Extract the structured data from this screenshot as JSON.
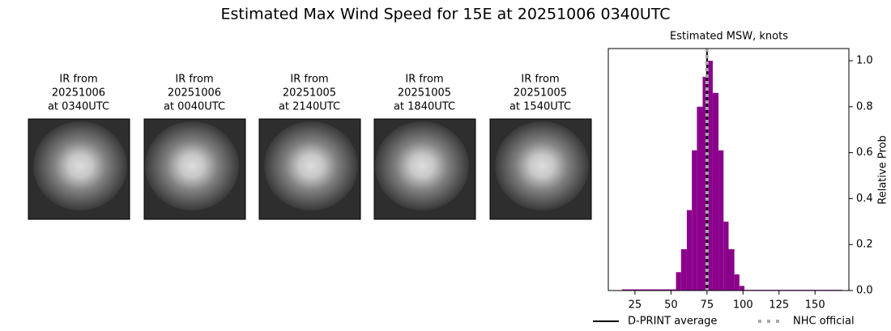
{
  "title": "Estimated Max Wind Speed for 15E at 20251006 0340UTC",
  "panels": [
    {
      "lines": [
        "IR from",
        "20251006",
        "at 0340UTC"
      ]
    },
    {
      "lines": [
        "IR from",
        "20251006",
        "at 0040UTC"
      ]
    },
    {
      "lines": [
        "IR from",
        "20251005",
        "at 2140UTC"
      ]
    },
    {
      "lines": [
        "IR from",
        "20251005",
        "at 1840UTC"
      ]
    },
    {
      "lines": [
        "IR from",
        "20251005",
        "at 1540UTC"
      ]
    }
  ],
  "chart_data": {
    "type": "histogram",
    "title": "Estimated MSW, knots",
    "ylabel": "Relative Prob",
    "bins": [
      16,
      53.5,
      57,
      61,
      64.5,
      68,
      72,
      75.5,
      79,
      83,
      86.5,
      90,
      94,
      97.5,
      101,
      169
    ],
    "values": [
      0.005,
      0.08,
      0.18,
      0.35,
      0.61,
      0.8,
      0.93,
      1.0,
      0.86,
      0.61,
      0.3,
      0.18,
      0.07,
      0.02,
      0.003
    ],
    "color": "#8b008b",
    "xlim": [
      6.5,
      173.5
    ],
    "ylim": [
      0,
      1.053
    ],
    "xticks": [
      25,
      50,
      75,
      100,
      125,
      150
    ],
    "yticks": [
      {
        "value": 0,
        "label": "0.0"
      },
      {
        "value": 0.2,
        "label": "0.2"
      },
      {
        "value": 0.4,
        "label": "0.4"
      },
      {
        "value": 0.6,
        "label": "0.6"
      },
      {
        "value": 0.8,
        "label": "0.8"
      },
      {
        "value": 1.0,
        "label": "1.0"
      }
    ],
    "yaxis_side": "right",
    "vlines": [
      {
        "name": "D-PRINT average",
        "value": 75,
        "color": "#000000",
        "dashed": false
      },
      {
        "name": "NHC official",
        "value": 75,
        "color": "#aaaaaa",
        "dashed": true
      }
    ],
    "legend": "below"
  }
}
